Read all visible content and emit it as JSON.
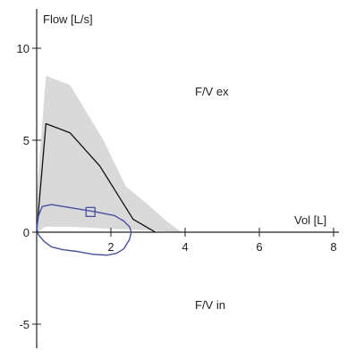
{
  "chart_data": {
    "type": "line",
    "xlabel": "Vol [L]",
    "ylabel": "Flow [L/s]",
    "xlim": [
      0,
      8
    ],
    "ylim": [
      -7,
      12
    ],
    "x_ticks": [
      2,
      4,
      6,
      8
    ],
    "y_ticks": [
      10,
      5,
      0,
      -5
    ],
    "x_tick_labels": [
      "2",
      "4",
      "6",
      "8"
    ],
    "y_tick_labels": [
      "10",
      "5",
      "0",
      "-5"
    ],
    "annotations": {
      "expiration": "F/V ex",
      "inspiration": "F/V in"
    },
    "colors": {
      "predicted_band": "#d9d9d9",
      "predicted_curve": "#111111",
      "measured_loop": "#4a4fa0",
      "axes": "#222222"
    },
    "series": [
      {
        "kind": "band",
        "x": [
          0.0,
          0.25,
          0.9,
          1.8,
          2.4,
          3.0,
          3.5,
          3.9
        ],
        "upper": [
          2.0,
          8.5,
          8.0,
          5.0,
          2.5,
          1.5,
          0.6,
          0.0
        ],
        "lower": [
          0.0,
          0.3,
          0.3,
          0.2,
          0.15,
          0.1,
          0.05,
          0.0
        ]
      },
      {
        "kind": "predicted",
        "x": [
          0.0,
          0.25,
          0.9,
          1.7,
          2.6,
          3.2
        ],
        "y": [
          0.0,
          5.9,
          5.4,
          3.6,
          0.7,
          0.0
        ]
      },
      {
        "kind": "measured",
        "closed": true,
        "x": [
          0.0,
          0.05,
          0.15,
          0.4,
          1.0,
          1.6,
          2.1,
          2.35,
          2.5,
          2.55,
          2.5,
          2.35,
          2.15,
          1.9,
          1.5,
          1.1,
          0.7,
          0.4,
          0.2,
          0.05,
          0.0
        ],
        "y": [
          0.2,
          0.9,
          1.4,
          1.5,
          1.3,
          1.1,
          0.9,
          0.6,
          0.3,
          0.0,
          -0.4,
          -0.9,
          -1.15,
          -1.25,
          -1.2,
          -1.05,
          -0.95,
          -0.8,
          -0.5,
          -0.15,
          0.2
        ]
      }
    ],
    "marker": {
      "shape": "square",
      "x": 1.45,
      "y": 1.1
    }
  }
}
